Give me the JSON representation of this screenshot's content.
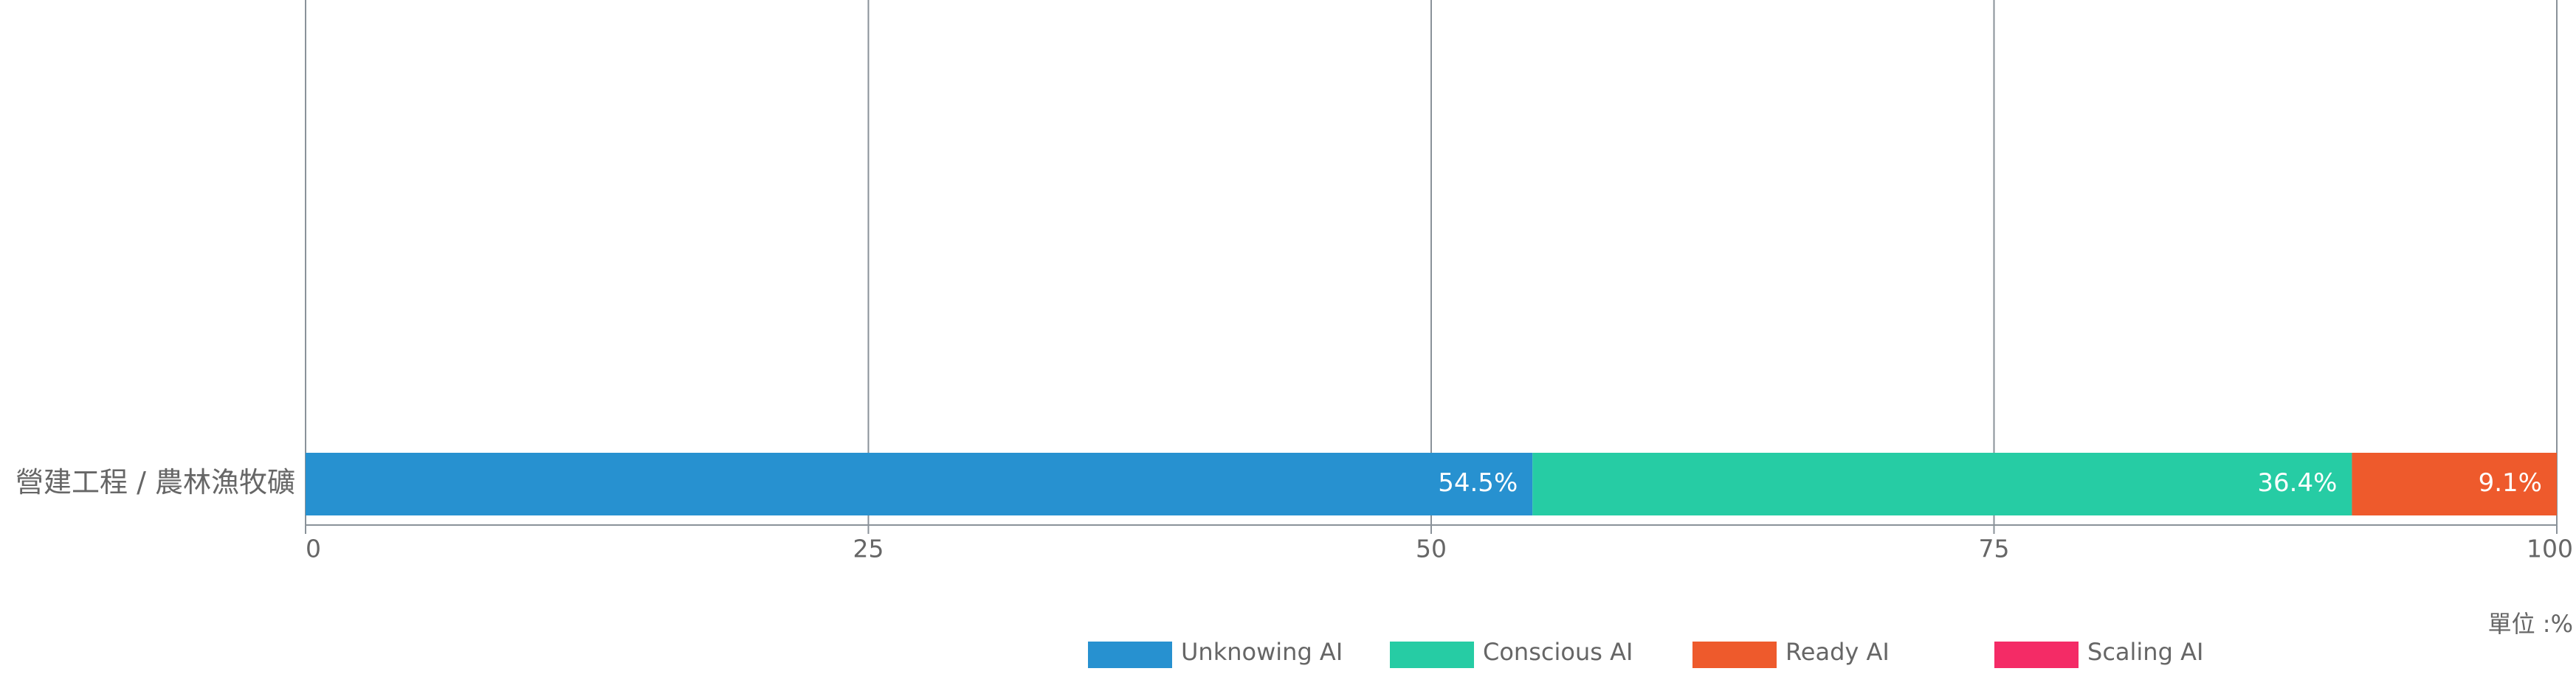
{
  "chart_data": {
    "type": "stacked-bar-horizontal",
    "categories": [
      "營建工程 / 農林漁牧礦"
    ],
    "series": [
      {
        "name": "Unknowing AI",
        "color": "#2791d0",
        "values": [
          54.5
        ],
        "value_labels": [
          "54.5%"
        ]
      },
      {
        "name": "Conscious AI",
        "color": "#26cca4",
        "values": [
          36.4
        ],
        "value_labels": [
          "36.4%"
        ]
      },
      {
        "name": "Ready AI",
        "color": "#ee5a2c",
        "values": [
          9.1
        ],
        "value_labels": [
          "9.1%"
        ]
      },
      {
        "name": "Scaling AI",
        "color": "#f42b66",
        "values": [
          0
        ]
      }
    ],
    "xlim": [
      0,
      100
    ],
    "xticks": [
      0,
      25,
      50,
      75,
      100
    ],
    "grid": true,
    "unit_label": "單位 :%",
    "legend": "bottom"
  }
}
